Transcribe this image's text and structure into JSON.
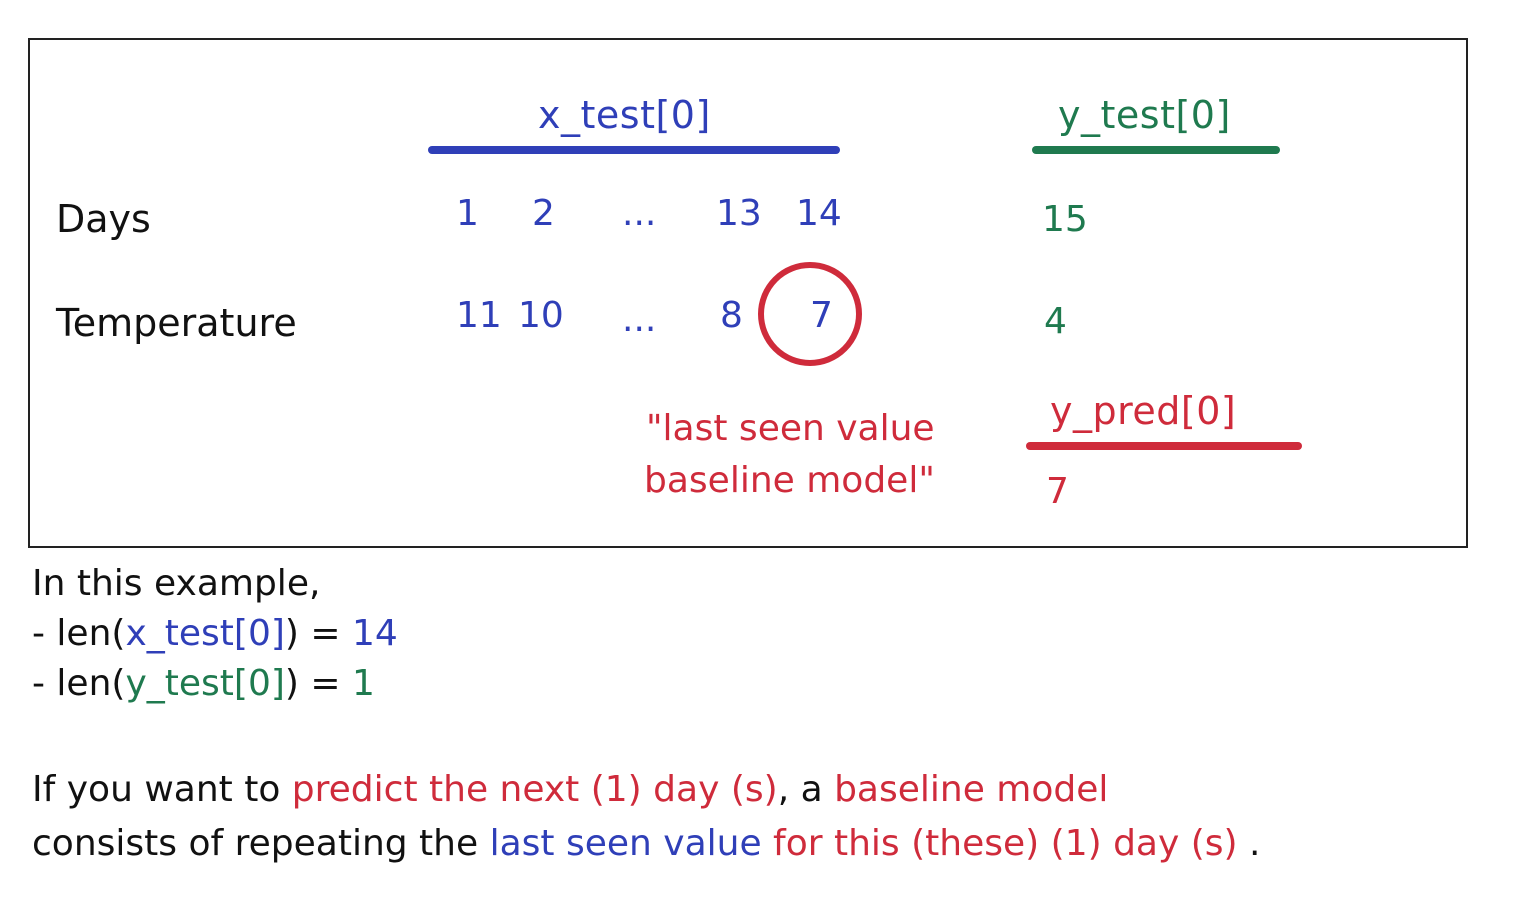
{
  "table": {
    "x_header": "x_test[0]",
    "y_header": "y_test[0]",
    "pred_header": "y_pred[0]",
    "row_days_label": "Days",
    "row_temp_label": "Temperature",
    "days": [
      "1",
      "2",
      "...",
      "13",
      "14"
    ],
    "temps": [
      "11",
      "10",
      "...",
      "8",
      "7"
    ],
    "y_day": "15",
    "y_temp": "4",
    "pred_value": "7",
    "note_line1": "\"last seen value",
    "note_line2": "baseline model\""
  },
  "explanation": {
    "intro": "In this example,",
    "len1_prefix": "- len(",
    "len1_var": "x_test[0]",
    "len1_suffix": ") = ",
    "len1_value": "14",
    "len2_prefix": "- len(",
    "len2_var": "y_test[0]",
    "len2_suffix": ") = ",
    "len2_value": "1",
    "p1_a": "If you want to ",
    "p1_b": "predict the next (1) day (s)",
    "p1_c": ", a ",
    "p1_d": "baseline model",
    "p2_a": "consists of repeating the ",
    "p2_b": "last seen value",
    "p2_c": " for this (these) (1) day (s)",
    "p2_d": " ."
  },
  "colors": {
    "input": "#2f3fb8",
    "target": "#1f7a4f",
    "prediction": "#cf2b3b",
    "text": "#111111"
  }
}
